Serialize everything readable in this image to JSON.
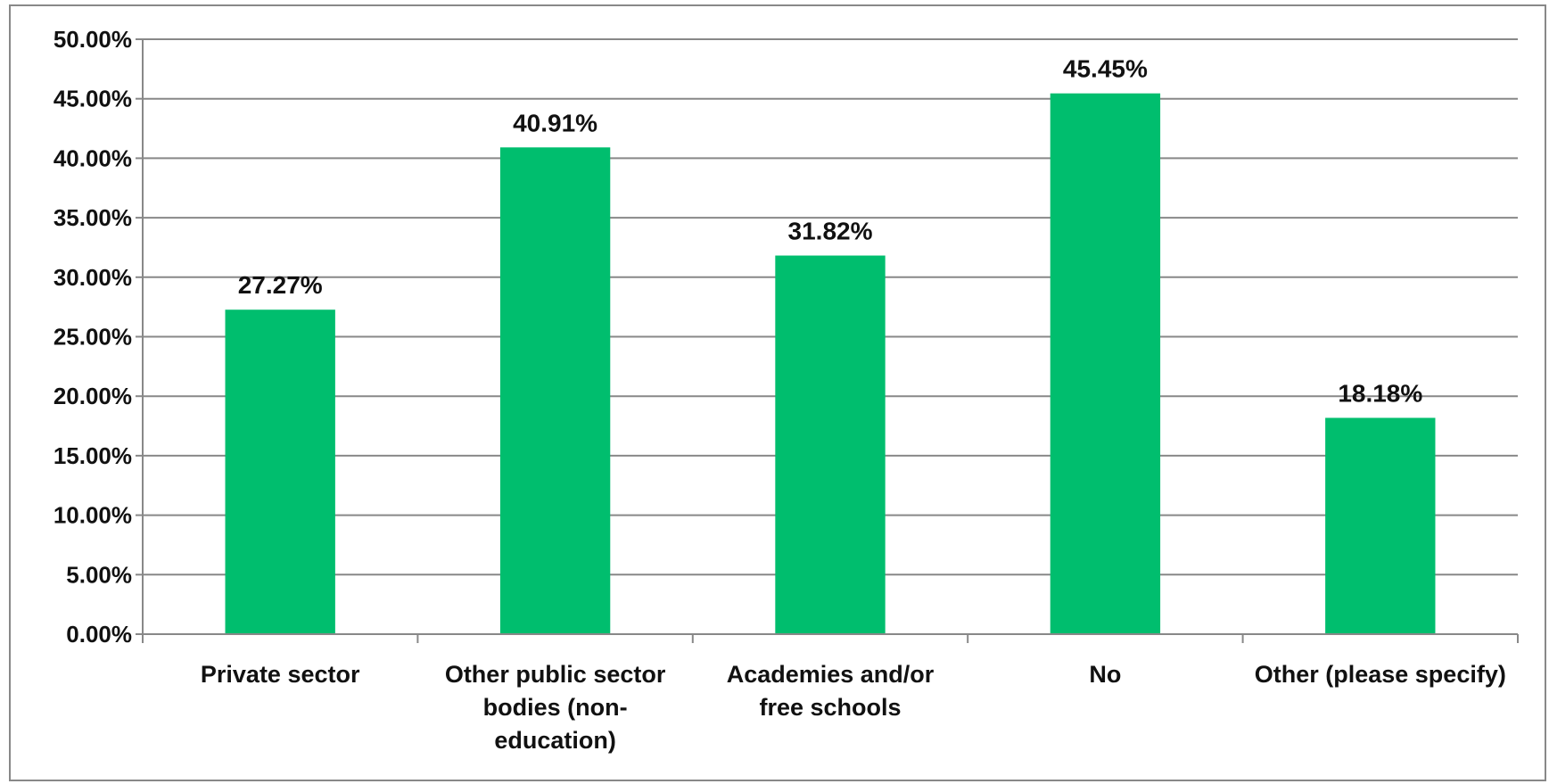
{
  "chart_data": {
    "type": "bar",
    "title": "",
    "xlabel": "",
    "ylabel": "",
    "categories": [
      [
        "Private sector"
      ],
      [
        "Other public sector",
        "bodies (non-",
        "education)"
      ],
      [
        "Academies and/or",
        "free schools"
      ],
      [
        "No"
      ],
      [
        "Other (please specify)"
      ]
    ],
    "values": [
      27.27,
      40.91,
      31.82,
      45.45,
      18.18
    ],
    "data_labels": [
      "27.27%",
      "40.91%",
      "31.82%",
      "45.45%",
      "18.18%"
    ],
    "ylim": [
      0,
      50
    ],
    "yticks": [
      0,
      5,
      10,
      15,
      20,
      25,
      30,
      35,
      40,
      45,
      50
    ],
    "ytick_labels": [
      "0.00%",
      "5.00%",
      "10.00%",
      "15.00%",
      "20.00%",
      "25.00%",
      "30.00%",
      "35.00%",
      "40.00%",
      "45.00%",
      "50.00%"
    ],
    "grid": true,
    "legend": "none",
    "colors": {
      "bar": "#00BE6E",
      "grid": "#888888",
      "axis": "#888888",
      "frame": "#888888",
      "text": "#111111"
    }
  }
}
